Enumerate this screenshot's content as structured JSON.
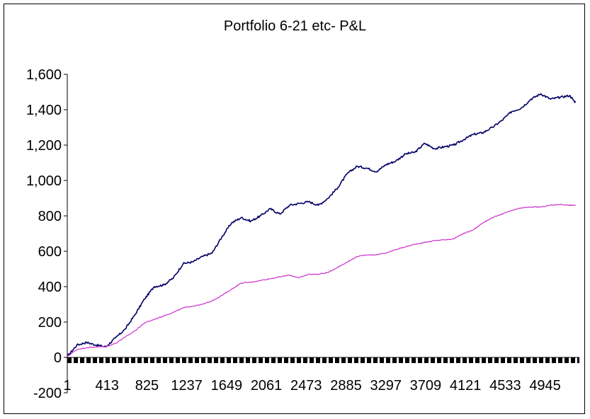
{
  "chart_data": {
    "type": "line",
    "title": "Portfolio 6-21 etc- P&L",
    "xlabel": "",
    "ylabel": "",
    "ylim": [
      -200,
      1600
    ],
    "xlim": [
      1,
      5300
    ],
    "y_ticks": [
      "-200",
      "0",
      "200",
      "400",
      "600",
      "800",
      "1,000",
      "1,200",
      "1,400",
      "1,600"
    ],
    "y_tick_values": [
      -200,
      0,
      200,
      400,
      600,
      800,
      1000,
      1200,
      1400,
      1600
    ],
    "x_ticks": [
      "1",
      "413",
      "825",
      "1237",
      "1649",
      "2061",
      "2473",
      "2885",
      "3297",
      "3709",
      "4121",
      "4533",
      "4945"
    ],
    "x_tick_values": [
      1,
      413,
      825,
      1237,
      1649,
      2061,
      2473,
      2885,
      3297,
      3709,
      4121,
      4533,
      4945
    ],
    "grid": false,
    "legend": "none",
    "series": [
      {
        "color": "#000066",
        "x": [
          1,
          100,
          200,
          300,
          400,
          500,
          600,
          700,
          800,
          900,
          1000,
          1100,
          1200,
          1300,
          1400,
          1500,
          1600,
          1700,
          1800,
          1900,
          2000,
          2100,
          2200,
          2300,
          2400,
          2500,
          2600,
          2700,
          2800,
          2900,
          3000,
          3100,
          3200,
          3300,
          3400,
          3500,
          3600,
          3700,
          3800,
          3900,
          4000,
          4100,
          4200,
          4300,
          4400,
          4500,
          4600,
          4700,
          4800,
          4900,
          5000,
          5100,
          5200,
          5260
        ],
        "values": [
          5,
          70,
          85,
          70,
          60,
          110,
          160,
          240,
          330,
          400,
          410,
          450,
          530,
          540,
          570,
          590,
          680,
          760,
          790,
          770,
          800,
          840,
          810,
          860,
          870,
          880,
          860,
          900,
          960,
          1040,
          1080,
          1070,
          1050,
          1090,
          1110,
          1150,
          1160,
          1210,
          1180,
          1190,
          1200,
          1230,
          1260,
          1270,
          1300,
          1340,
          1390,
          1410,
          1460,
          1490,
          1460,
          1470,
          1480,
          1440
        ]
      },
      {
        "color": "#cc33cc",
        "x": [
          1,
          100,
          200,
          300,
          400,
          500,
          600,
          700,
          800,
          900,
          1000,
          1100,
          1200,
          1300,
          1400,
          1500,
          1600,
          1700,
          1800,
          1900,
          2000,
          2100,
          2200,
          2300,
          2400,
          2500,
          2600,
          2700,
          2800,
          2900,
          3000,
          3100,
          3200,
          3300,
          3400,
          3500,
          3600,
          3700,
          3800,
          3900,
          4000,
          4100,
          4200,
          4300,
          4400,
          4500,
          4600,
          4700,
          4800,
          4900,
          5000,
          5100,
          5200,
          5260
        ],
        "values": [
          5,
          45,
          55,
          60,
          60,
          80,
          115,
          150,
          195,
          215,
          235,
          255,
          280,
          290,
          300,
          320,
          350,
          385,
          420,
          425,
          435,
          445,
          455,
          465,
          450,
          470,
          470,
          480,
          510,
          540,
          570,
          580,
          580,
          590,
          610,
          625,
          640,
          650,
          660,
          665,
          670,
          700,
          720,
          760,
          790,
          810,
          830,
          845,
          850,
          850,
          860,
          865,
          860,
          860
        ]
      }
    ]
  }
}
